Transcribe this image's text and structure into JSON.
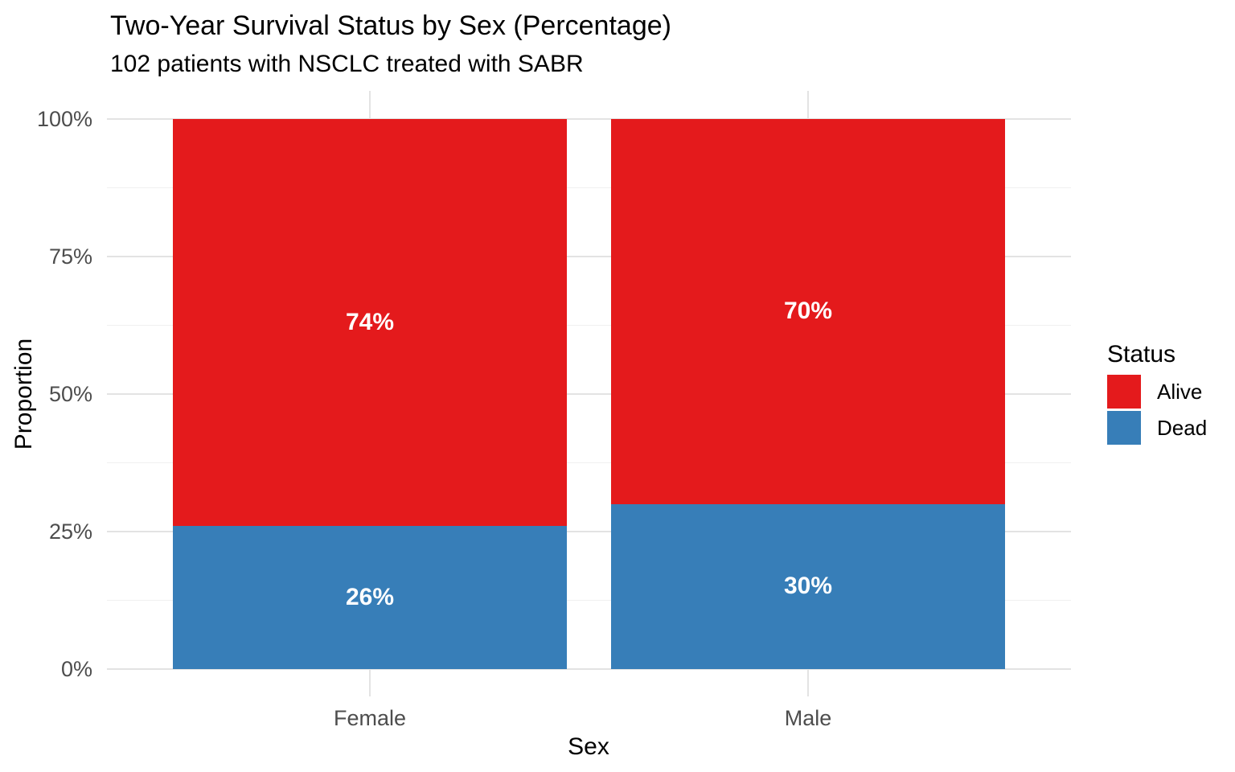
{
  "chart_data": {
    "type": "bar",
    "stacked": true,
    "percent": true,
    "title": "Two-Year Survival Status by Sex (Percentage)",
    "subtitle": "102 patients with NSCLC treated with SABR",
    "xlabel": "Sex",
    "ylabel": "Proportion",
    "categories": [
      "Female",
      "Male"
    ],
    "series": [
      {
        "name": "Dead",
        "color": "#377EB8",
        "values": [
          26,
          30
        ],
        "labels": [
          "26%",
          "30%"
        ]
      },
      {
        "name": "Alive",
        "color": "#E41A1C",
        "values": [
          74,
          70
        ],
        "labels": [
          "74%",
          "70%"
        ]
      }
    ],
    "y_axis": {
      "range": [
        0,
        100
      ],
      "ticks": [
        {
          "label": "0%",
          "value": 0
        },
        {
          "label": "25%",
          "value": 25
        },
        {
          "label": "50%",
          "value": 50
        },
        {
          "label": "75%",
          "value": 75
        },
        {
          "label": "100%",
          "value": 100
        }
      ],
      "minor_values": [
        12.5,
        37.5,
        62.5,
        87.5
      ]
    },
    "legend": {
      "title": "Status",
      "position": "right",
      "entries": [
        {
          "label": "Alive",
          "color": "#E41A1C"
        },
        {
          "label": "Dead",
          "color": "#377EB8"
        }
      ]
    },
    "grid": true,
    "theme": {
      "background": "#FFFFFF",
      "grid_major": "#E3E3E3",
      "grid_minor": "#F0F0F0",
      "axis_text": "#4D4D4D",
      "title_text": "#000000",
      "bar_label_text": "#FFFFFF"
    }
  }
}
